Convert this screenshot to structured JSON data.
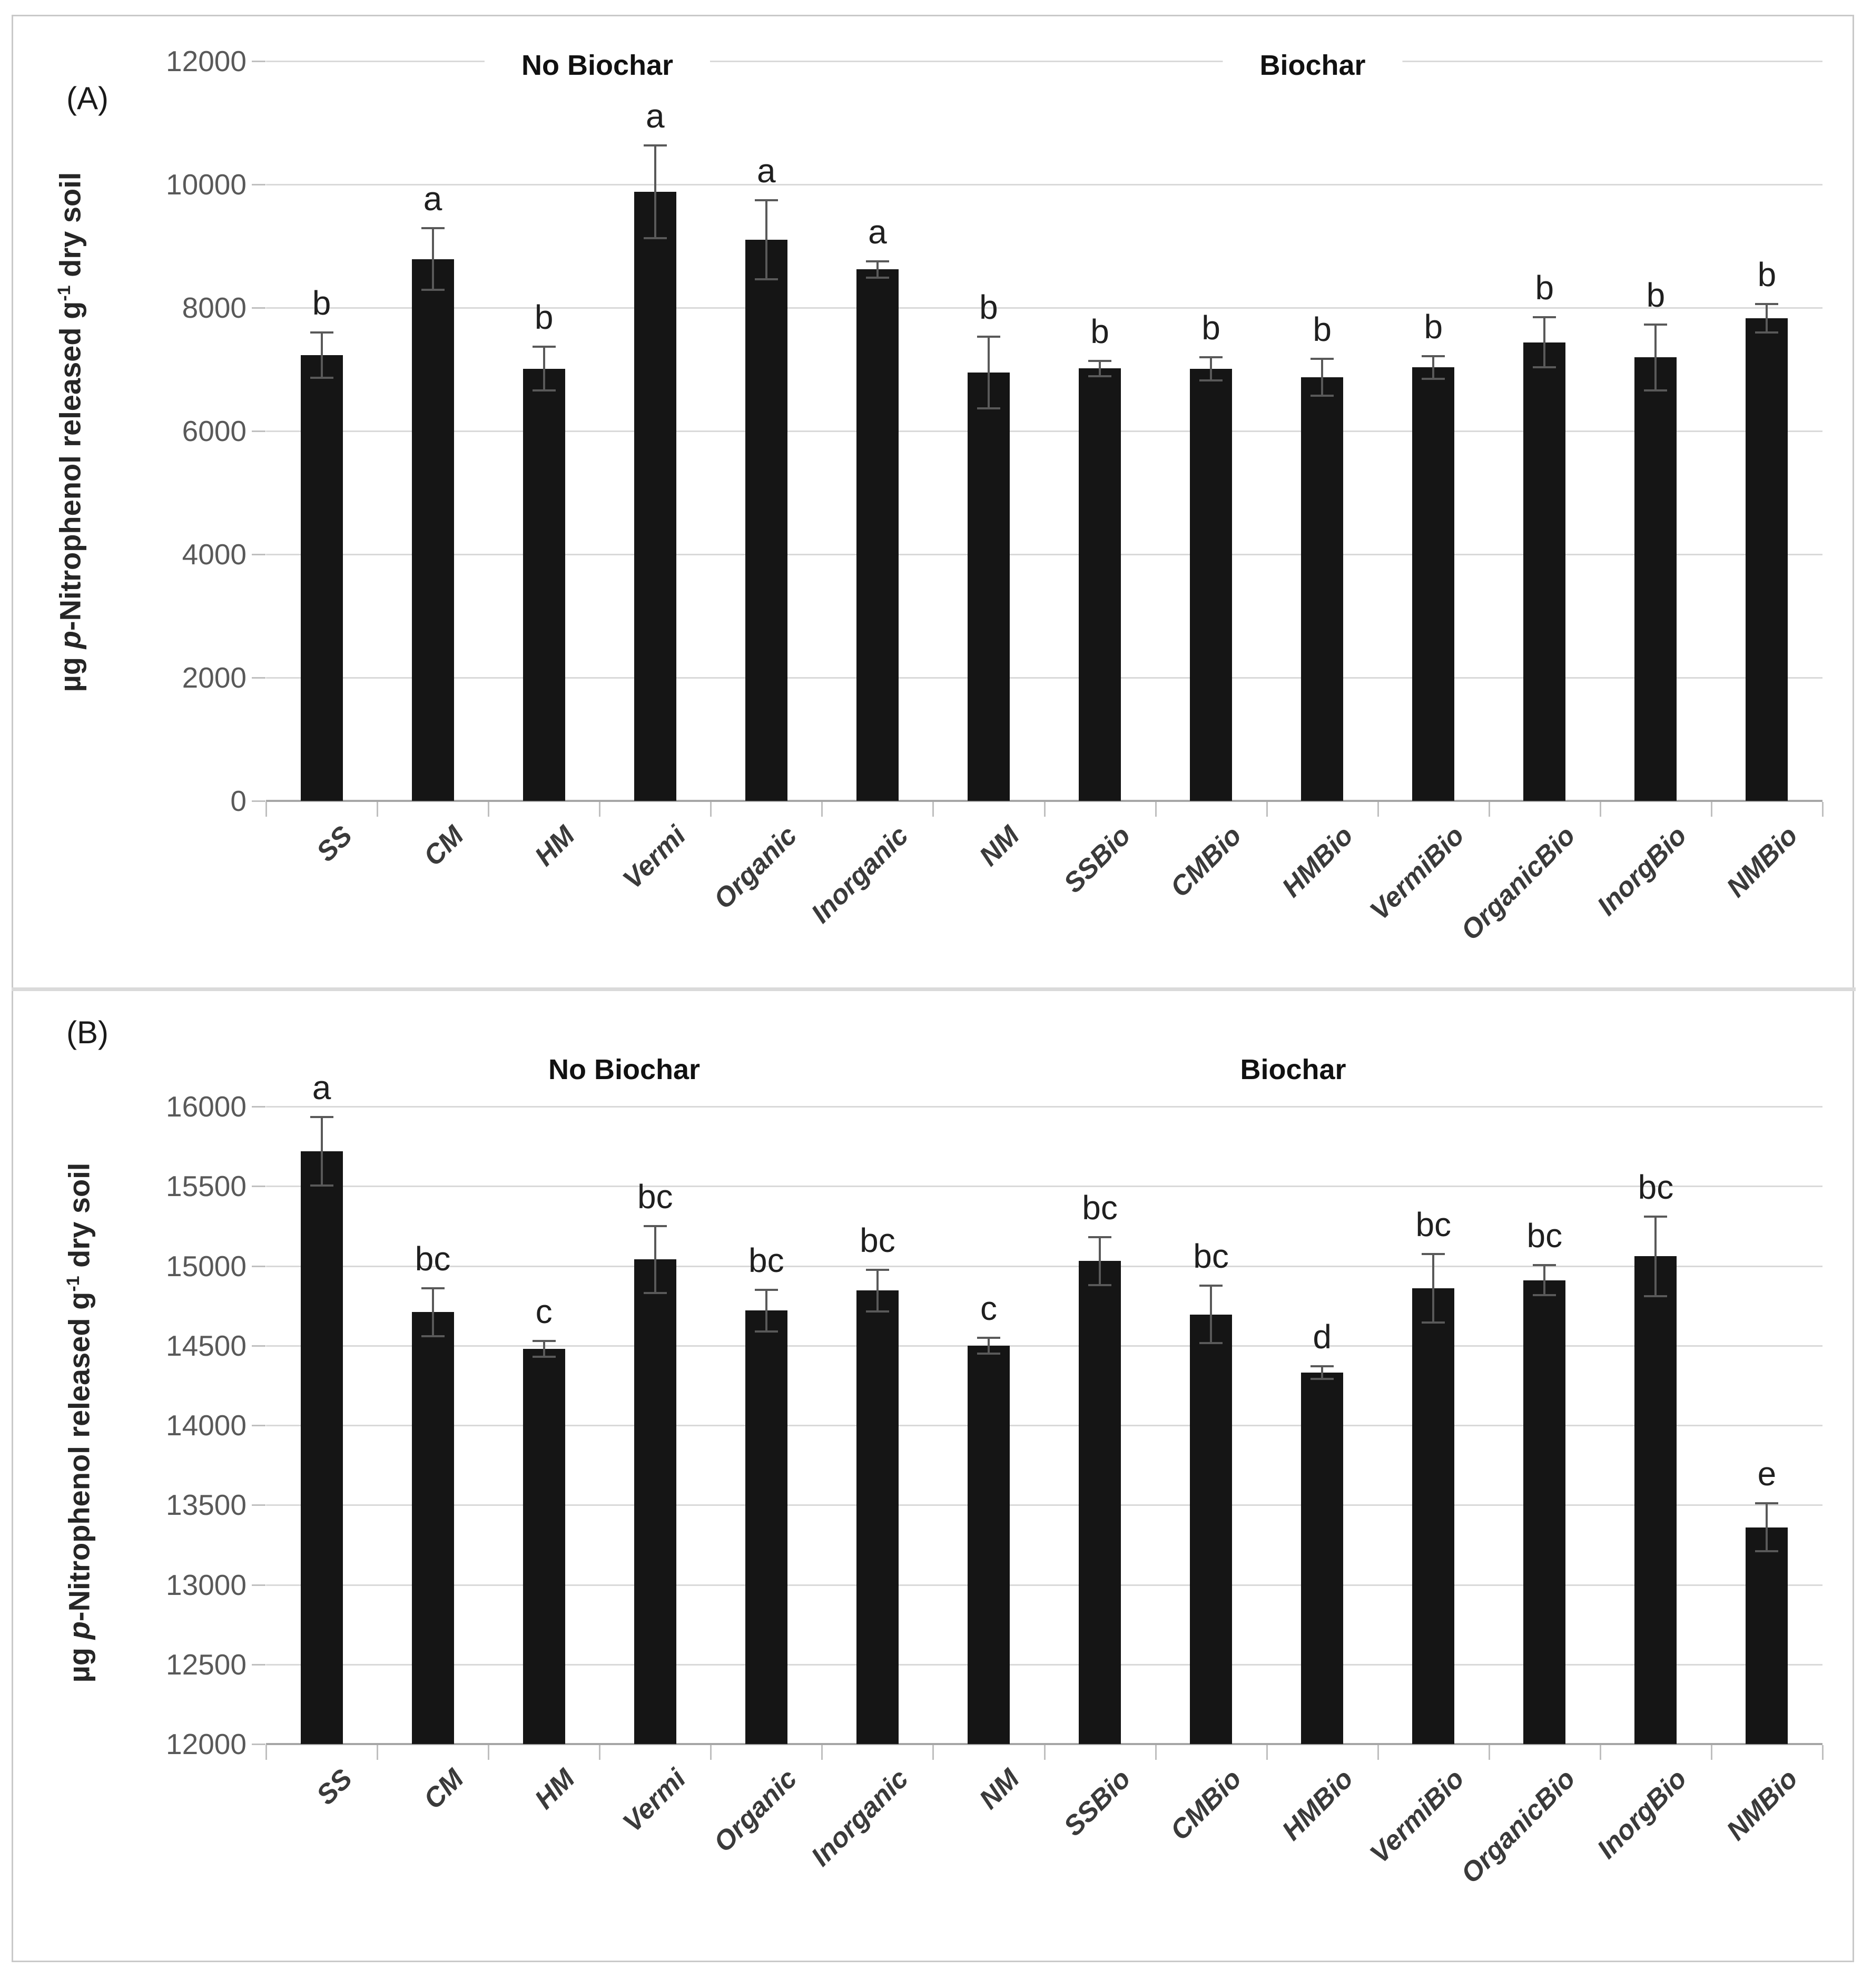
{
  "figure": {
    "border_color": "#c9c9c9",
    "divider_color": "#dadada",
    "background": "#ffffff",
    "bar_color": "#151515",
    "gridline_color": "#d9d9d9",
    "error_bar_color": "#595959"
  },
  "chart_data": [
    {
      "type": "bar",
      "panel_label": "(A)",
      "group_labels": [
        "No Biochar",
        "Biochar"
      ],
      "ylabel": {
        "prefix": "µg ",
        "italic": "p",
        "mid": "-Nitrophenol released g",
        "sup": "-1",
        "suffix": " dry soil"
      },
      "categories": [
        "SS",
        "CM",
        "HM",
        "Vermi",
        "Organic",
        "Inorganic",
        "NM",
        "SSBio",
        "CMBio",
        "HMBio",
        "VermiBio",
        "OrganicBio",
        "InorgBio",
        "NMBio"
      ],
      "values": [
        7230,
        8790,
        7010,
        9880,
        9100,
        8620,
        6950,
        7015,
        7010,
        6870,
        7030,
        7440,
        7195,
        7830
      ],
      "errors": [
        370,
        500,
        355,
        755,
        640,
        130,
        580,
        125,
        190,
        300,
        180,
        410,
        535,
        230
      ],
      "letters": [
        "b",
        "a",
        "b",
        "a",
        "a",
        "a",
        "b",
        "b",
        "b",
        "b",
        "b",
        "b",
        "b",
        "b"
      ],
      "ylim": [
        0,
        12000
      ],
      "ytick_step": 2000,
      "ytick_labels": [
        "0",
        "2000",
        "4000",
        "6000",
        "8000",
        "10000",
        "12000"
      ],
      "grid": true,
      "legend": "none"
    },
    {
      "type": "bar",
      "panel_label": "(B)",
      "group_labels": [
        "No Biochar",
        "Biochar"
      ],
      "ylabel": {
        "prefix": "µg ",
        "italic": "p",
        "mid": "-Nitrophenol released g",
        "sup": "-1",
        "suffix": " dry soil"
      },
      "categories": [
        "SS",
        "CM",
        "HM",
        "Vermi",
        "Organic",
        "Inorganic",
        "NM",
        "SSBio",
        "CMBio",
        "HMBio",
        "VermiBio",
        "OrganicBio",
        "InorgBio",
        "NMBio"
      ],
      "values": [
        15720,
        14710,
        14480,
        15040,
        14720,
        14845,
        14500,
        15030,
        14695,
        14330,
        14860,
        14910,
        15060,
        13360
      ],
      "errors": [
        215,
        150,
        50,
        210,
        130,
        130,
        50,
        150,
        180,
        40,
        215,
        95,
        250,
        150
      ],
      "letters": [
        "a",
        "bc",
        "c",
        "bc",
        "bc",
        "bc",
        "c",
        "bc",
        "bc",
        "d",
        "bc",
        "bc",
        "bc",
        "e"
      ],
      "ylim": [
        12000,
        16000
      ],
      "ytick_step": 500,
      "ytick_labels": [
        "12000",
        "12500",
        "13000",
        "13500",
        "14000",
        "14500",
        "15000",
        "15500",
        "16000"
      ],
      "grid": true,
      "legend": "none"
    }
  ]
}
